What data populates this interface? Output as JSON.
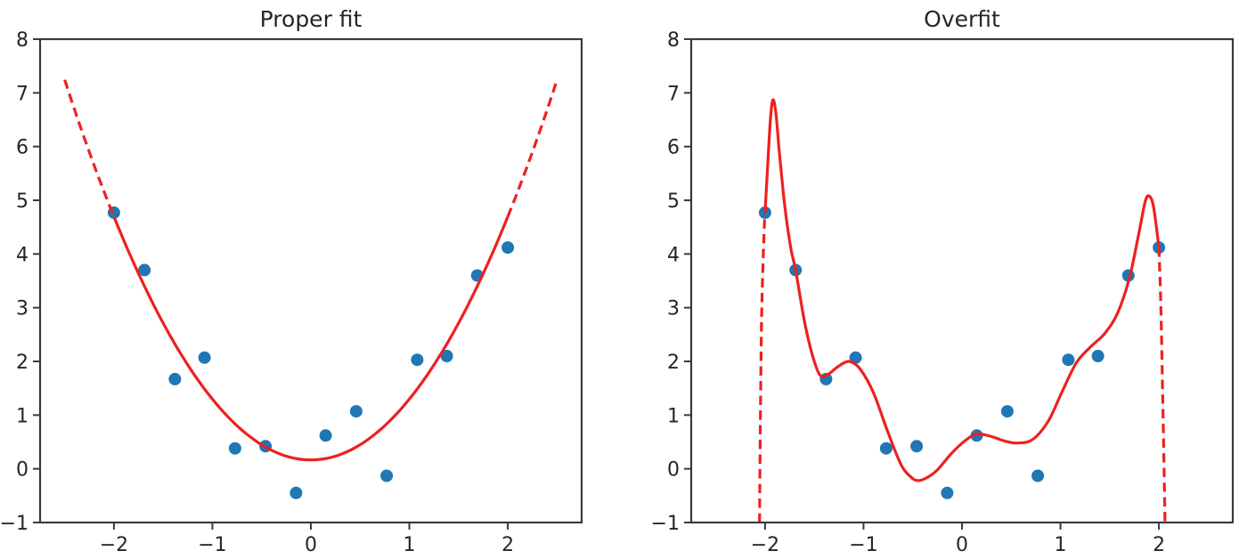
{
  "figure": {
    "background": "#ffffff"
  },
  "chart_data": [
    {
      "type": "scatter",
      "title": "Proper fit",
      "x": [
        -2.0,
        -1.69,
        -1.38,
        -1.08,
        -0.77,
        -0.46,
        -0.15,
        0.15,
        0.46,
        0.77,
        1.08,
        1.38,
        1.69,
        2.0
      ],
      "y": [
        4.77,
        3.7,
        1.67,
        2.07,
        0.38,
        0.42,
        -0.45,
        0.62,
        1.07,
        -0.13,
        2.03,
        2.1,
        3.6,
        4.12
      ],
      "xlim": [
        -2.75,
        2.75
      ],
      "ylim": [
        -1,
        8
      ],
      "xticks": [
        -2,
        -1,
        0,
        1,
        2
      ],
      "xtick_labels": [
        "−2",
        "−1",
        "0",
        "1",
        "2"
      ],
      "yticks": [
        -1,
        0,
        1,
        2,
        3,
        4,
        5,
        6,
        7,
        8
      ],
      "ytick_labels": [
        "−1",
        "0",
        "1",
        "2",
        "3",
        "4",
        "5",
        "6",
        "7",
        "8"
      ],
      "grid": false,
      "legend": null,
      "point_color": "#1f77b4",
      "curve_color": "#ee2020",
      "axis_color": "#3a3a3a",
      "fit_curve": {
        "kind": "quadratic",
        "coeffs": {
          "a": 1.1325,
          "b": 0,
          "c": 0.165
        },
        "solid_range": [
          -2.0,
          2.0
        ],
        "dashed_ranges": [
          [
            -2.5,
            -2.0
          ],
          [
            2.0,
            2.5
          ]
        ]
      }
    },
    {
      "type": "scatter",
      "title": "Overfit",
      "x": [
        -2.0,
        -1.69,
        -1.38,
        -1.08,
        -0.77,
        -0.46,
        -0.15,
        0.15,
        0.46,
        0.77,
        1.08,
        1.38,
        1.69,
        2.0
      ],
      "y": [
        4.77,
        3.7,
        1.67,
        2.07,
        0.38,
        0.42,
        -0.45,
        0.62,
        1.07,
        -0.13,
        2.03,
        2.1,
        3.6,
        4.12
      ],
      "xlim": [
        -2.75,
        2.75
      ],
      "ylim": [
        -1,
        8
      ],
      "xticks": [
        -2,
        -1,
        0,
        1,
        2
      ],
      "xtick_labels": [
        "−2",
        "−1",
        "0",
        "1",
        "2"
      ],
      "yticks": [
        -1,
        0,
        1,
        2,
        3,
        4,
        5,
        6,
        7,
        8
      ],
      "ytick_labels": [
        "−1",
        "0",
        "1",
        "2",
        "3",
        "4",
        "5",
        "6",
        "7",
        "8"
      ],
      "grid": false,
      "legend": null,
      "point_color": "#1f77b4",
      "curve_color": "#ee2020",
      "axis_color": "#3a3a3a",
      "fit_curve": {
        "kind": "path",
        "solid_points": [
          [
            -2.0,
            4.77
          ],
          [
            -1.97,
            5.75
          ],
          [
            -1.945,
            6.52
          ],
          [
            -1.92,
            6.87
          ],
          [
            -1.89,
            6.62
          ],
          [
            -1.855,
            5.9
          ],
          [
            -1.8,
            4.9
          ],
          [
            -1.74,
            4.12
          ],
          [
            -1.69,
            3.7
          ],
          [
            -1.6,
            2.75
          ],
          [
            -1.52,
            2.12
          ],
          [
            -1.44,
            1.74
          ],
          [
            -1.36,
            1.76
          ],
          [
            -1.26,
            1.9
          ],
          [
            -1.15,
            2.0
          ],
          [
            -1.04,
            1.87
          ],
          [
            -0.9,
            1.42
          ],
          [
            -0.76,
            0.72
          ],
          [
            -0.62,
            0.08
          ],
          [
            -0.52,
            -0.15
          ],
          [
            -0.45,
            -0.22
          ],
          [
            -0.36,
            -0.17
          ],
          [
            -0.25,
            -0.02
          ],
          [
            -0.1,
            0.3
          ],
          [
            0.05,
            0.55
          ],
          [
            0.16,
            0.65
          ],
          [
            0.3,
            0.6
          ],
          [
            0.45,
            0.51
          ],
          [
            0.57,
            0.48
          ],
          [
            0.72,
            0.55
          ],
          [
            0.88,
            0.9
          ],
          [
            1.02,
            1.45
          ],
          [
            1.16,
            1.97
          ],
          [
            1.3,
            2.26
          ],
          [
            1.45,
            2.52
          ],
          [
            1.58,
            2.9
          ],
          [
            1.7,
            3.55
          ],
          [
            1.8,
            4.42
          ],
          [
            1.86,
            4.97
          ],
          [
            1.9,
            5.08
          ],
          [
            1.945,
            4.88
          ],
          [
            2.0,
            4.12
          ]
        ],
        "dashed_segments": [
          [
            [
              -2.056,
              -1.0
            ],
            [
              -2.048,
              0.8
            ],
            [
              -2.035,
              2.8
            ],
            [
              -2.012,
              4.3
            ],
            [
              -2.0,
              4.77
            ]
          ],
          [
            [
              2.0,
              4.12
            ],
            [
              2.02,
              3.0
            ],
            [
              2.04,
              1.2
            ],
            [
              2.055,
              -0.3
            ],
            [
              2.062,
              -1.0
            ]
          ]
        ]
      }
    }
  ]
}
